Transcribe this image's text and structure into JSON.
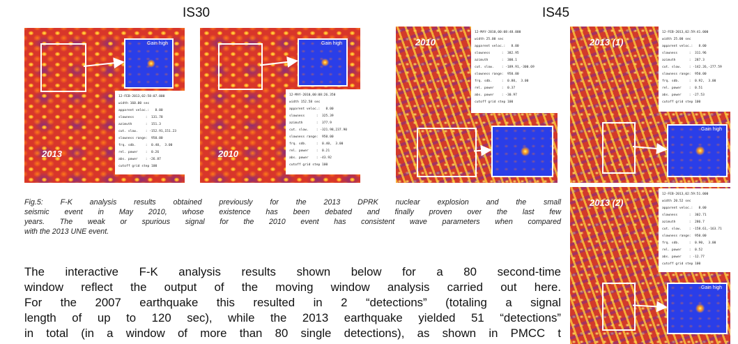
{
  "stations": [
    "IS30",
    "IS45"
  ],
  "panels": [
    {
      "label": "2013",
      "gain": "Gain high",
      "info": [
        "12-FEB-2013,02:58:07.000",
        "width 160.00 sec",
        "apparent veloc.:   8.00",
        "slowness      :  131.78",
        "azimuth       :  151.3",
        "cut. slow.    : -152.91,151.23",
        "slowness range:  950.00",
        "frq. sdb.     :  0.40,  3.00",
        "rel. power    :  0.26",
        "abs. power    : -26.87",
        "cutoff grid step 100"
      ]
    },
    {
      "label": "2010",
      "gain": "Gain high",
      "info": [
        "12-MAY-2010,00:08:26.350",
        "width 152.58 sec",
        "apparent veloc.:   8.00",
        "slowness      :  325.39",
        "azimuth       :  377.9",
        "cut. slow.    : -321.98,237.90",
        "slowness range:  950.00",
        "frq. sdb.     :  0.40,  3.00",
        "rel. power    :  0.21",
        "abs. power    : -43.92",
        "cutoff grid step 100"
      ]
    },
    {
      "label": "2010",
      "gain": null,
      "info": [
        "12-MAY-2010,00:08:48.000",
        "width 25.00 sec",
        "apparent veloc.:   8.00",
        "slowness      :  382.95",
        "azimuth       :  300.1",
        "cut. slow.    : -189.91,-300.69",
        "slowness range:  950.00",
        "frq. sdb.     :  0.80,  3.00",
        "rel. power    :  0.37",
        "abs. power    : -30.97",
        "cutoff grid step 100"
      ]
    },
    {
      "label": "2013 (1)",
      "gain": "Gain high",
      "info": [
        "12-FEB-2013,02:59:41.000",
        "width 25.00 sec",
        "apparent veloc.:   8.00",
        "slowness      :  311.96",
        "azimuth       :  287.3",
        "cut. slow.    : -142.26,-277.59",
        "slowness range:  950.00",
        "frq. sdb.     :  0.92,  3.00",
        "rel. power    :  0.51",
        "abs. power    : -27.53",
        "cutoff grid step 100"
      ]
    },
    {
      "label": "2013 (2)",
      "gain": "Gain high",
      "info": [
        "12-FEB-2013,02:59:51.000",
        "width 20.52 sec",
        "apparent veloc.:   8.00",
        "slowness      :  302.71",
        "azimuth       :  286.7",
        "cut. slow.    : -158.61,-163.71",
        "slowness range:  950.00",
        "frq. sdb.     :  0.90,  3.00",
        "rel. power    :  0.52",
        "abs. power    : -12.77",
        "cutoff grid step 100"
      ]
    }
  ],
  "caption": [
    "Fig.5: F-K analysis results obtained previously for the 2013 DPRK nuclear explosion and the small",
    "seismic event in May 2010, whose existence has been debated and finally proven over the last few",
    "years. The weak or spurious signal for the 2010 event has consistent wave parameters when compared",
    "with the 2013 UNE event."
  ],
  "paragraph": [
    "The interactive F-K analysis results shown below for a 80 second-time",
    "window reflect the output of the moving window analysis carried out here.",
    "For the 2007 earthquake this resulted in 2 “detections” (totaling a signal",
    "length of up to 120 sec), while the 2013 earthquake yielded 51 “detections”",
    "in total (in a window of more than 80 single detections), as shown in PMCC t"
  ]
}
